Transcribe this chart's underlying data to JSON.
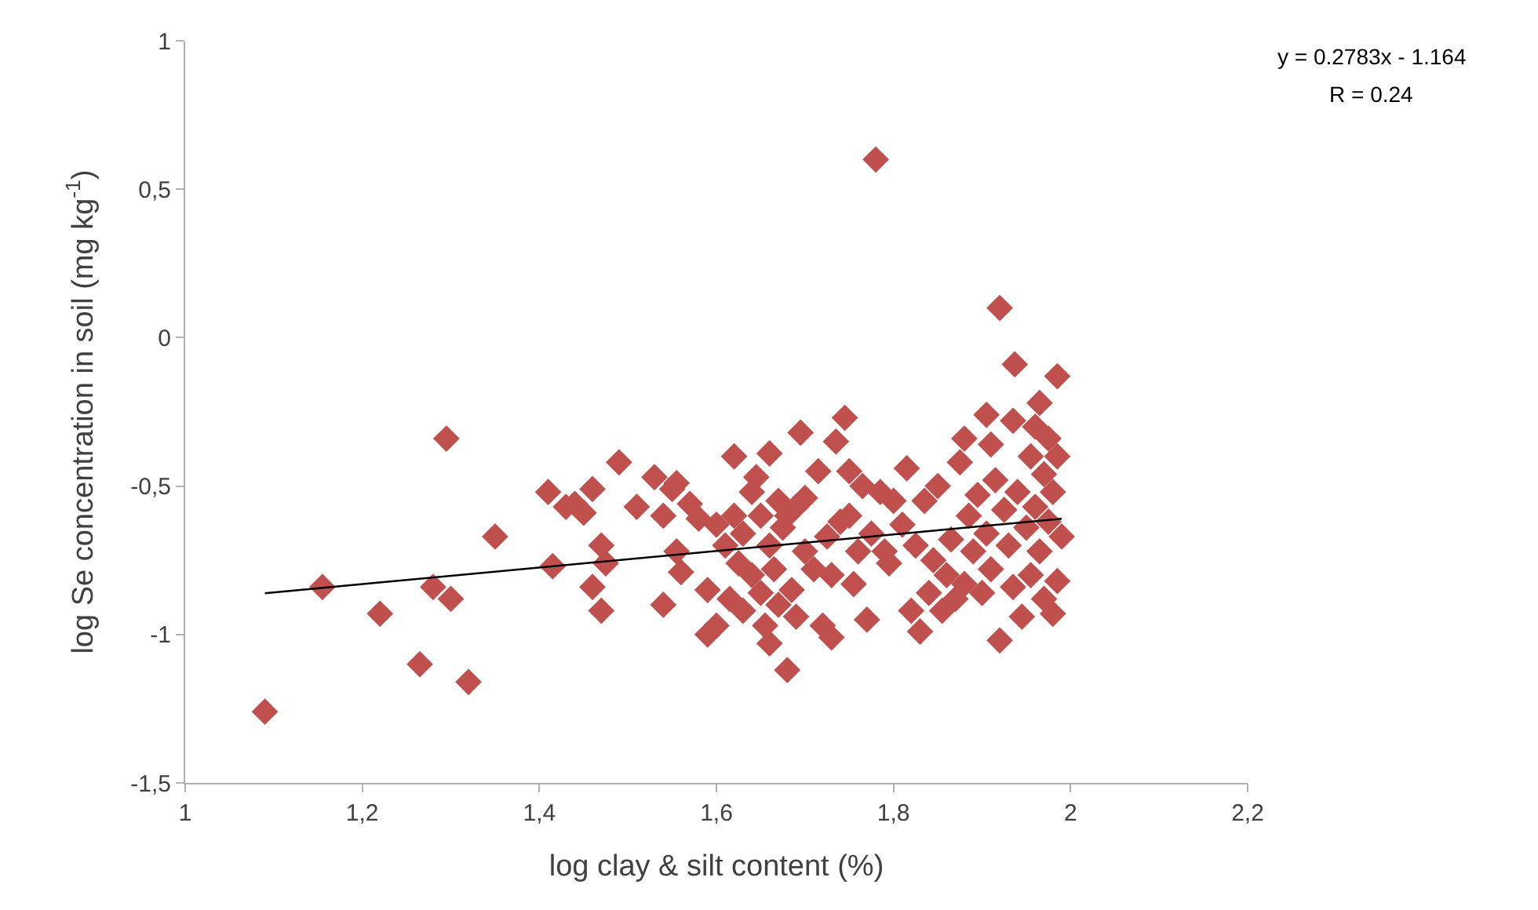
{
  "chart_data": {
    "type": "scatter",
    "xlabel": "log clay & silt content (%)",
    "ylabel": "log Se concentration in soil (mg kg$^{-1}$)",
    "annotations": [
      "y = 0.2783x - 1.164",
      "R = 0.24"
    ],
    "xlim": [
      1,
      2.2
    ],
    "xticks": [
      1,
      {
        "value": 1.2,
        "label": "1,2"
      },
      {
        "value": 1.4,
        "label": "1,4"
      },
      {
        "value": 1.6,
        "label": "1,6"
      },
      {
        "value": 1.8,
        "label": "1,8"
      },
      2,
      {
        "value": 2.2,
        "label": "2,2"
      }
    ],
    "ylim": [
      -1.5,
      1
    ],
    "yticks": [
      {
        "value": -1.5,
        "label": "-1,5"
      },
      -1,
      {
        "value": -0.5,
        "label": "-0,5"
      },
      0,
      {
        "value": 0.5,
        "label": "0,5"
      },
      1
    ],
    "grid": false,
    "series": [
      {
        "marker": "diamond",
        "color": "#c0504d",
        "x": [
          1.09,
          1.155,
          1.22,
          1.265,
          1.28,
          1.295,
          1.3,
          1.32,
          1.35,
          1.41,
          1.415,
          1.43,
          1.44,
          1.45,
          1.46,
          1.46,
          1.47,
          1.47,
          1.475,
          1.49,
          1.51,
          1.53,
          1.54,
          1.54,
          1.55,
          1.555,
          1.555,
          1.56,
          1.57,
          1.58,
          1.59,
          1.59,
          1.6,
          1.6,
          1.61,
          1.615,
          1.62,
          1.62,
          1.625,
          1.63,
          1.63,
          1.64,
          1.64,
          1.645,
          1.65,
          1.65,
          1.655,
          1.66,
          1.66,
          1.66,
          1.665,
          1.67,
          1.67,
          1.675,
          1.68,
          1.68,
          1.685,
          1.69,
          1.69,
          1.695,
          1.7,
          1.7,
          1.71,
          1.715,
          1.72,
          1.725,
          1.73,
          1.73,
          1.735,
          1.74,
          1.745,
          1.75,
          1.75,
          1.755,
          1.76,
          1.765,
          1.77,
          1.775,
          1.78,
          1.785,
          1.79,
          1.795,
          1.8,
          1.81,
          1.815,
          1.82,
          1.825,
          1.83,
          1.835,
          1.84,
          1.845,
          1.85,
          1.855,
          1.86,
          1.865,
          1.87,
          1.875,
          1.88,
          1.88,
          1.885,
          1.89,
          1.895,
          1.9,
          1.905,
          1.905,
          1.91,
          1.91,
          1.915,
          1.92,
          1.92,
          1.925,
          1.93,
          1.935,
          1.935,
          1.937,
          1.94,
          1.945,
          1.95,
          1.955,
          1.955,
          1.96,
          1.96,
          1.965,
          1.965,
          1.97,
          1.97,
          1.975,
          1.975,
          1.98,
          1.98,
          1.985,
          1.985,
          1.985,
          1.99
        ],
        "values": [
          -1.26,
          -0.84,
          -0.93,
          -1.1,
          -0.84,
          -0.34,
          -0.88,
          -1.16,
          -0.67,
          -0.52,
          -0.77,
          -0.57,
          -0.56,
          -0.59,
          -0.51,
          -0.84,
          -0.7,
          -0.92,
          -0.76,
          -0.42,
          -0.57,
          -0.47,
          -0.6,
          -0.9,
          -0.51,
          -0.49,
          -0.72,
          -0.79,
          -0.56,
          -0.61,
          -0.85,
          -1.0,
          -0.63,
          -0.97,
          -0.7,
          -0.88,
          -0.4,
          -0.6,
          -0.76,
          -0.66,
          -0.92,
          -0.52,
          -0.8,
          -0.47,
          -0.6,
          -0.86,
          -0.97,
          -0.39,
          -0.7,
          -1.03,
          -0.78,
          -0.55,
          -0.9,
          -0.64,
          -0.6,
          -1.12,
          -0.85,
          -0.57,
          -0.94,
          -0.32,
          -0.72,
          -0.54,
          -0.78,
          -0.45,
          -0.97,
          -0.67,
          -0.8,
          -1.01,
          -0.35,
          -0.62,
          -0.27,
          -0.45,
          -0.6,
          -0.83,
          -0.72,
          -0.5,
          -0.95,
          -0.66,
          0.6,
          -0.52,
          -0.72,
          -0.76,
          -0.55,
          -0.63,
          -0.44,
          -0.92,
          -0.7,
          -0.99,
          -0.55,
          -0.86,
          -0.75,
          -0.5,
          -0.92,
          -0.8,
          -0.68,
          -0.88,
          -0.42,
          -0.34,
          -0.83,
          -0.6,
          -0.72,
          -0.53,
          -0.86,
          -0.26,
          -0.66,
          -0.36,
          -0.78,
          -0.48,
          -1.02,
          0.1,
          -0.58,
          -0.7,
          -0.28,
          -0.84,
          -0.09,
          -0.52,
          -0.94,
          -0.64,
          -0.4,
          -0.8,
          -0.3,
          -0.57,
          -0.22,
          -0.72,
          -0.46,
          -0.88,
          -0.34,
          -0.62,
          -0.93,
          -0.52,
          -0.13,
          -0.82,
          -0.4,
          -0.67
        ]
      },
      {
        "type": "line",
        "color": "#000000",
        "x": [
          1.09,
          1.99
        ],
        "values": [
          -0.861,
          -0.61
        ]
      }
    ]
  }
}
